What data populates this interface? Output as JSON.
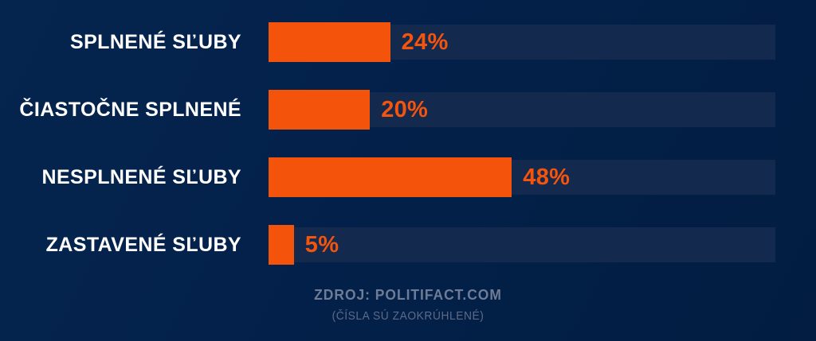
{
  "chart_data": {
    "type": "bar",
    "orientation": "horizontal",
    "categories": [
      "SPLNENÉ SĽUBY",
      "ČIASTOČNE SPLNENÉ",
      "NESPLNENÉ SĽUBY",
      "ZASTAVENÉ SĽUBY"
    ],
    "values": [
      24,
      20,
      48,
      5
    ],
    "value_labels": [
      "24%",
      "20%",
      "48%",
      "5%"
    ],
    "xlim": [
      0,
      100
    ],
    "title": "",
    "xlabel": "",
    "ylabel": "",
    "grid": false,
    "legend": "none",
    "track_full_scale": true
  },
  "footer": {
    "source": "ZDROJ: POLITIFACT.COM",
    "note": "(ČÍSLA SÚ ZAOKRÚHLENÉ)"
  },
  "colors": {
    "background": "#03214B",
    "bar": "#F4530C",
    "bar_track": "#14294E",
    "category_label": "#FFFFFF",
    "value_label": "#F4540C",
    "source_text": "#6F7C96",
    "note_text": "#5E6B86"
  }
}
